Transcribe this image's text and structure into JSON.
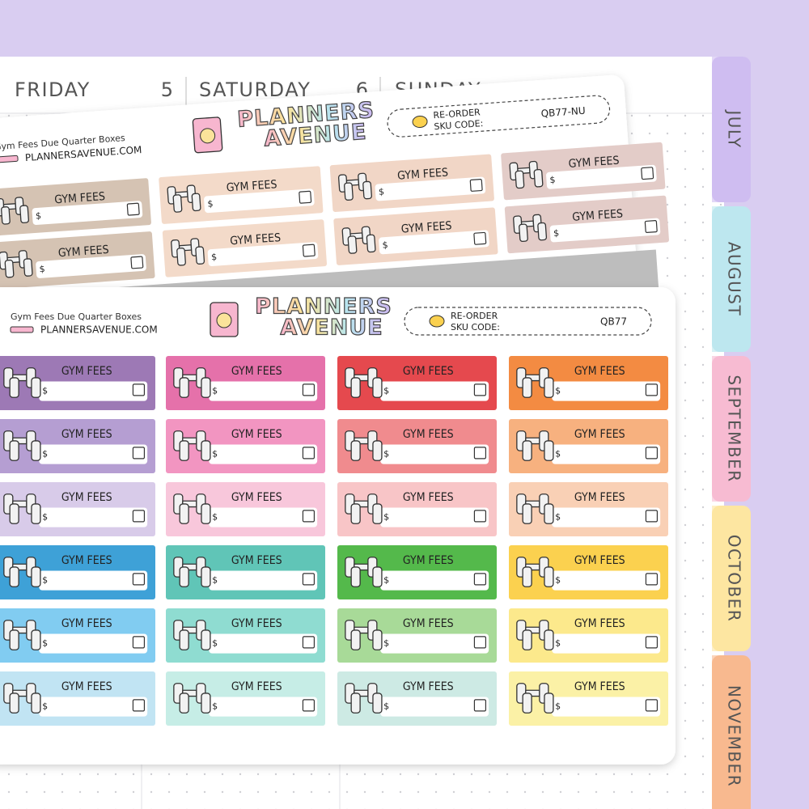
{
  "planner": {
    "days": [
      {
        "name": "FRIDAY",
        "number": "5"
      },
      {
        "name": "SATURDAY",
        "number": "6"
      },
      {
        "name": "SUNDAY"
      }
    ],
    "tabs": [
      {
        "label": "JULY",
        "color": "#cfbdf1"
      },
      {
        "label": "AUGUST",
        "color": "#bde7ef"
      },
      {
        "label": "SEPTEMBER",
        "color": "#f7bbd2"
      },
      {
        "label": "OCTOBER",
        "color": "#fde6a1"
      },
      {
        "label": "NOVEMBER",
        "color": "#f8b98f"
      }
    ]
  },
  "back_sheet": {
    "title": "Gym Fees Due Quarter Boxes",
    "website": "PLANNERSAVENUE.COM",
    "brand": [
      "PLANNERS",
      "AVENUE"
    ],
    "reorder": "RE-ORDER",
    "sku_label": "SKU CODE:",
    "sku": "QB77-NU",
    "sticker_label": "GYM FEES",
    "currency": "$",
    "colors": [
      [
        "#d5c3b3",
        "#f3dac9",
        "#f1d6c6",
        "#e3ccc8"
      ],
      [
        "#d5c3b3",
        "#f3dac9",
        "#f1d6c6",
        "#e3ccc8"
      ]
    ]
  },
  "front_sheet": {
    "title": "Gym Fees Due Quarter Boxes",
    "website": "PLANNERSAVENUE.COM",
    "brand": [
      "PLANNERS",
      "AVENUE"
    ],
    "reorder": "RE-ORDER",
    "sku_label": "SKU CODE:",
    "sku": "QB77",
    "sticker_label": "GYM FEES",
    "currency": "$",
    "colors": [
      [
        "#9d79b5",
        "#e571aa",
        "#e5494e",
        "#f38b42"
      ],
      [
        "#b59ed2",
        "#f295c1",
        "#f08b8e",
        "#f7b17f"
      ],
      [
        "#d8cbe9",
        "#f8c7db",
        "#f8c5c7",
        "#f9d0b5"
      ],
      [
        "#3ea1d7",
        "#60c5b7",
        "#54b94b",
        "#fbd14f"
      ],
      [
        "#81ccf1",
        "#8fdcd1",
        "#a8da98",
        "#fce98c"
      ],
      [
        "#c1e4f3",
        "#c6ede6",
        "#cdeae4",
        "#fbf1a6"
      ]
    ]
  }
}
